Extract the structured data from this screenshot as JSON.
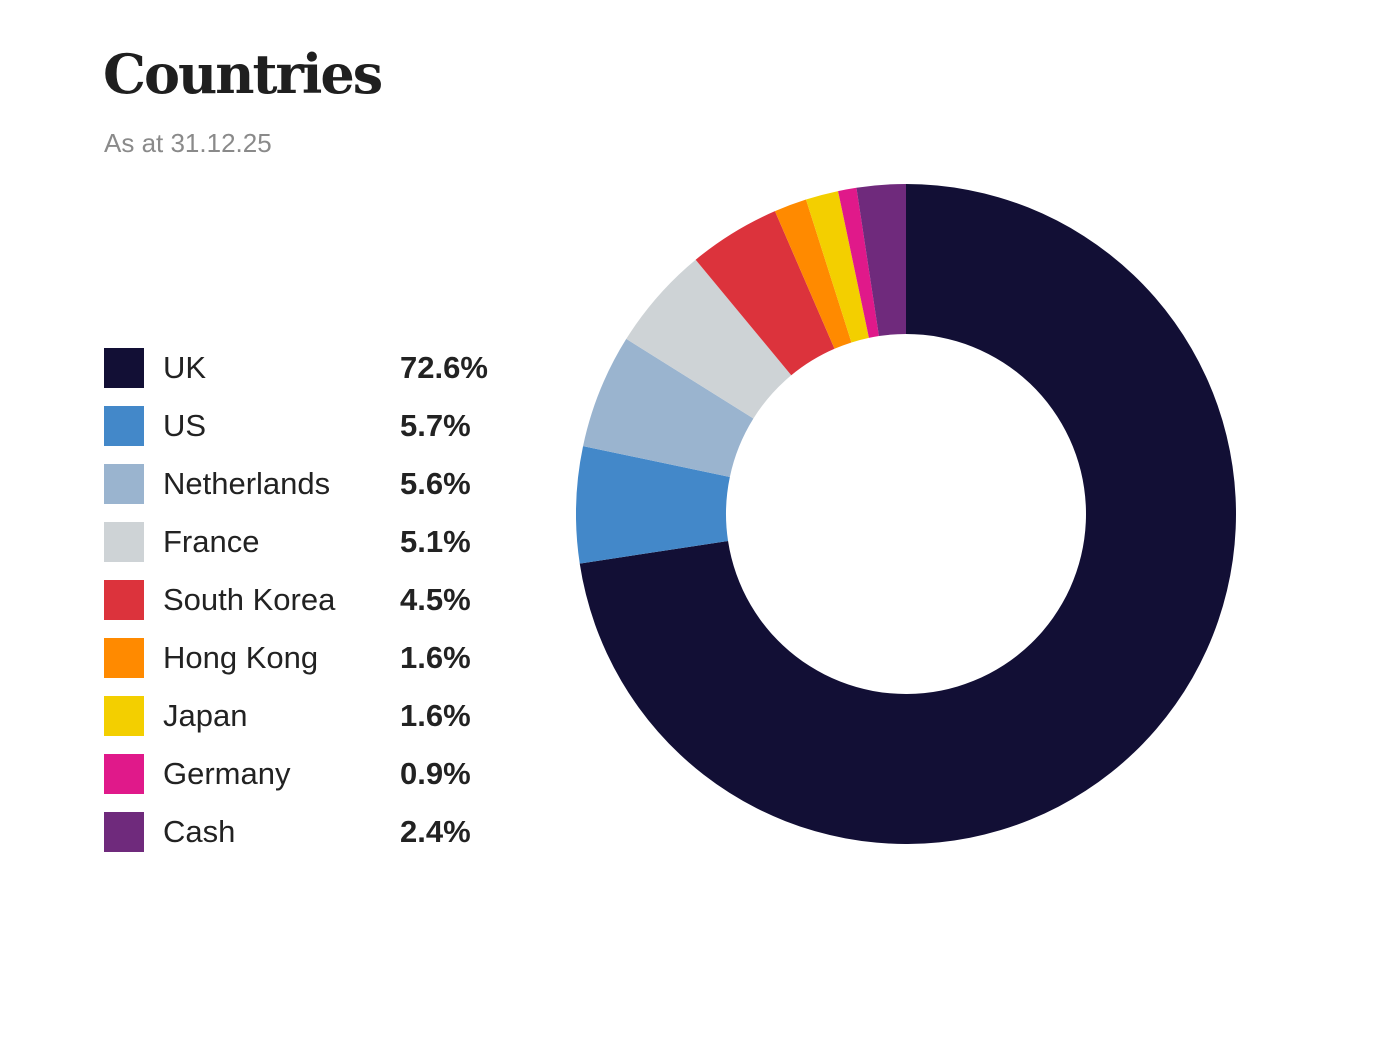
{
  "header": {
    "title": "Countries",
    "subtitle": "As at 31.12.25"
  },
  "legend": [
    {
      "label": "UK",
      "value": "72.6%",
      "color": "#120f35"
    },
    {
      "label": "US",
      "value": "5.7%",
      "color": "#4388c9"
    },
    {
      "label": "Netherlands",
      "value": "5.6%",
      "color": "#9ab4cf"
    },
    {
      "label": "France",
      "value": "5.1%",
      "color": "#ced3d6"
    },
    {
      "label": "South Korea",
      "value": "4.5%",
      "color": "#dc333c"
    },
    {
      "label": "Hong Kong",
      "value": "1.6%",
      "color": "#ff8a00"
    },
    {
      "label": "Japan",
      "value": "1.6%",
      "color": "#f3cf00"
    },
    {
      "label": "Germany",
      "value": "0.9%",
      "color": "#e0198a"
    },
    {
      "label": "Cash",
      "value": "2.4%",
      "color": "#6f2a7c"
    }
  ],
  "chart_data": {
    "type": "pie",
    "variant": "donut",
    "title": "Countries",
    "subtitle": "As at 31.12.25",
    "categories": [
      "UK",
      "US",
      "Netherlands",
      "France",
      "South Korea",
      "Hong Kong",
      "Japan",
      "Germany",
      "Cash"
    ],
    "values": [
      72.6,
      5.7,
      5.6,
      5.1,
      4.5,
      1.6,
      1.6,
      0.9,
      2.4
    ],
    "colors": [
      "#120f35",
      "#4388c9",
      "#9ab4cf",
      "#ced3d6",
      "#dc333c",
      "#ff8a00",
      "#f3cf00",
      "#e0198a",
      "#6f2a7c"
    ],
    "unit": "%",
    "start_angle": "12 o'clock",
    "direction": "clockwise",
    "legend_position": "left",
    "grid": false
  }
}
